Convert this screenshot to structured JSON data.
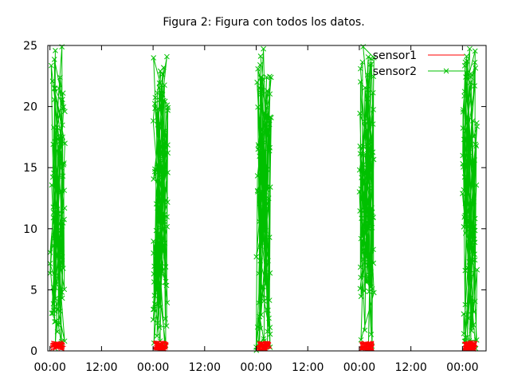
{
  "chart_data": {
    "type": "scatter",
    "title": "Figura 2: Figura con todos los datos.",
    "xlabel": "",
    "ylabel": "",
    "x_tick_labels": [
      "00:00",
      "12:00",
      "00:00",
      "12:00",
      "00:00",
      "12:00",
      "00:00",
      "12:00",
      "00:00"
    ],
    "x_range_hours": [
      -0.5,
      101.5
    ],
    "y_ticks": [
      "0",
      "5",
      "10",
      "15",
      "20",
      "25"
    ],
    "ylim": [
      0,
      25
    ],
    "grid": false,
    "legend_position": "top-right",
    "burst_start_hours": [
      0,
      24,
      48,
      72,
      96
    ],
    "burst_duration_hours": 3.5,
    "series": [
      {
        "name": "sensor1",
        "color": "#ff0000",
        "style": "lines",
        "value_range": [
          0,
          0.8
        ]
      },
      {
        "name": "sensor2",
        "color": "#00c000",
        "style": "linespoints",
        "marker": "x",
        "value_range": [
          0,
          25
        ]
      }
    ]
  }
}
